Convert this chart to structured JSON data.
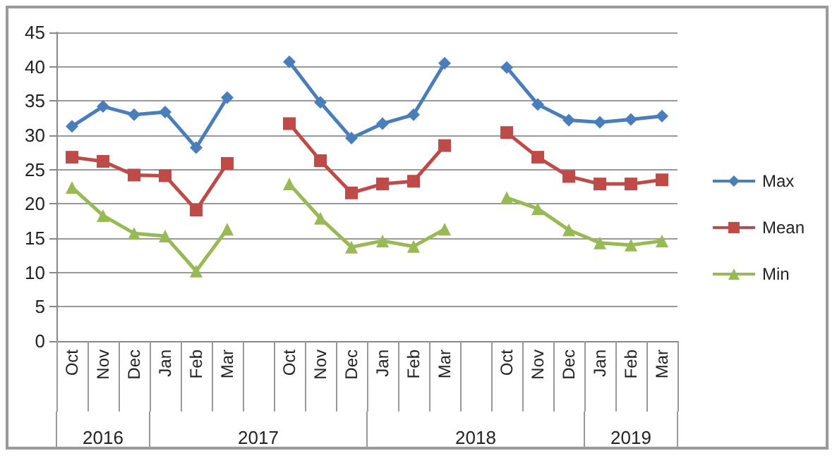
{
  "chart_data": {
    "type": "line",
    "categories": [
      "Oct",
      "Nov",
      "Dec",
      "Jan",
      "Feb",
      "Mar",
      null,
      "Oct",
      "Nov",
      "Dec",
      "Jan",
      "Feb",
      "Mar",
      null,
      "Oct",
      "Nov",
      "Dec",
      "Jan",
      "Feb",
      "Mar"
    ],
    "series": [
      {
        "name": "Max",
        "color": "#4a7ebb",
        "marker": "diamond",
        "values": [
          31.3,
          34.2,
          33.0,
          33.4,
          28.2,
          35.5,
          null,
          40.7,
          34.8,
          29.6,
          31.7,
          33.0,
          40.5,
          null,
          39.9,
          34.5,
          32.2,
          31.9,
          32.3,
          32.8
        ]
      },
      {
        "name": "Mean",
        "color": "#be4b48",
        "marker": "square",
        "values": [
          26.8,
          26.2,
          24.2,
          24.1,
          19.1,
          25.9,
          null,
          31.7,
          26.3,
          21.6,
          22.9,
          23.3,
          28.5,
          null,
          30.4,
          26.8,
          24.0,
          22.9,
          22.9,
          23.5
        ]
      },
      {
        "name": "Min",
        "color": "#98b954",
        "marker": "triangle",
        "values": [
          22.4,
          18.3,
          15.7,
          15.3,
          10.2,
          16.3,
          null,
          22.9,
          17.9,
          13.7,
          14.6,
          13.8,
          16.3,
          null,
          20.9,
          19.3,
          16.2,
          14.3,
          14.0,
          14.6
        ]
      }
    ],
    "ylim": [
      0,
      45
    ],
    "yticks": [
      0,
      5,
      10,
      15,
      20,
      25,
      30,
      35,
      40,
      45
    ],
    "grid": "y",
    "legend": "right",
    "line_style": "solid",
    "annotations": [
      "2016",
      "2017",
      "2018",
      "2019"
    ]
  }
}
